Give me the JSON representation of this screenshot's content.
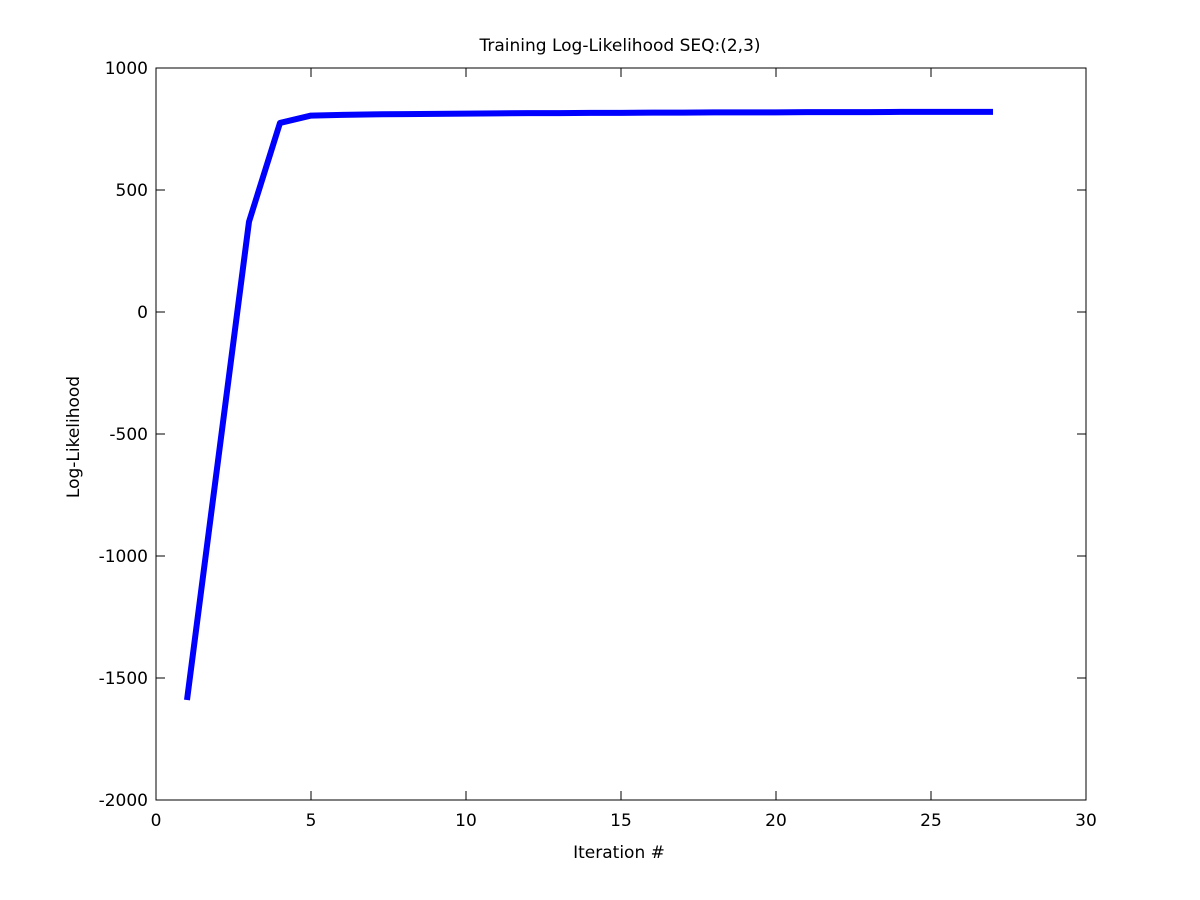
{
  "chart_data": {
    "type": "line",
    "title": "Training Log-Likelihood SEQ:(2,3)",
    "xlabel": "Iteration #",
    "ylabel": "Log-Likelihood",
    "xlim": [
      0,
      30
    ],
    "ylim": [
      -2000,
      1000
    ],
    "xticks": [
      0,
      5,
      10,
      15,
      20,
      25,
      30
    ],
    "yticks": [
      -2000,
      -1500,
      -1000,
      -500,
      0,
      500,
      1000
    ],
    "grid": false,
    "legend": "none",
    "series": [
      {
        "color": "#0000ff",
        "x": [
          1,
          2,
          3,
          4,
          5,
          6,
          7,
          8,
          9,
          10,
          11,
          12,
          13,
          14,
          15,
          16,
          17,
          18,
          19,
          20,
          21,
          22,
          23,
          24,
          25,
          26,
          27
        ],
        "y": [
          -1590,
          -610,
          370,
          775,
          805,
          808,
          810,
          811,
          812,
          813,
          814,
          815,
          815,
          816,
          816,
          817,
          817,
          818,
          818,
          818,
          819,
          819,
          819,
          820,
          820,
          820,
          820
        ]
      }
    ]
  }
}
